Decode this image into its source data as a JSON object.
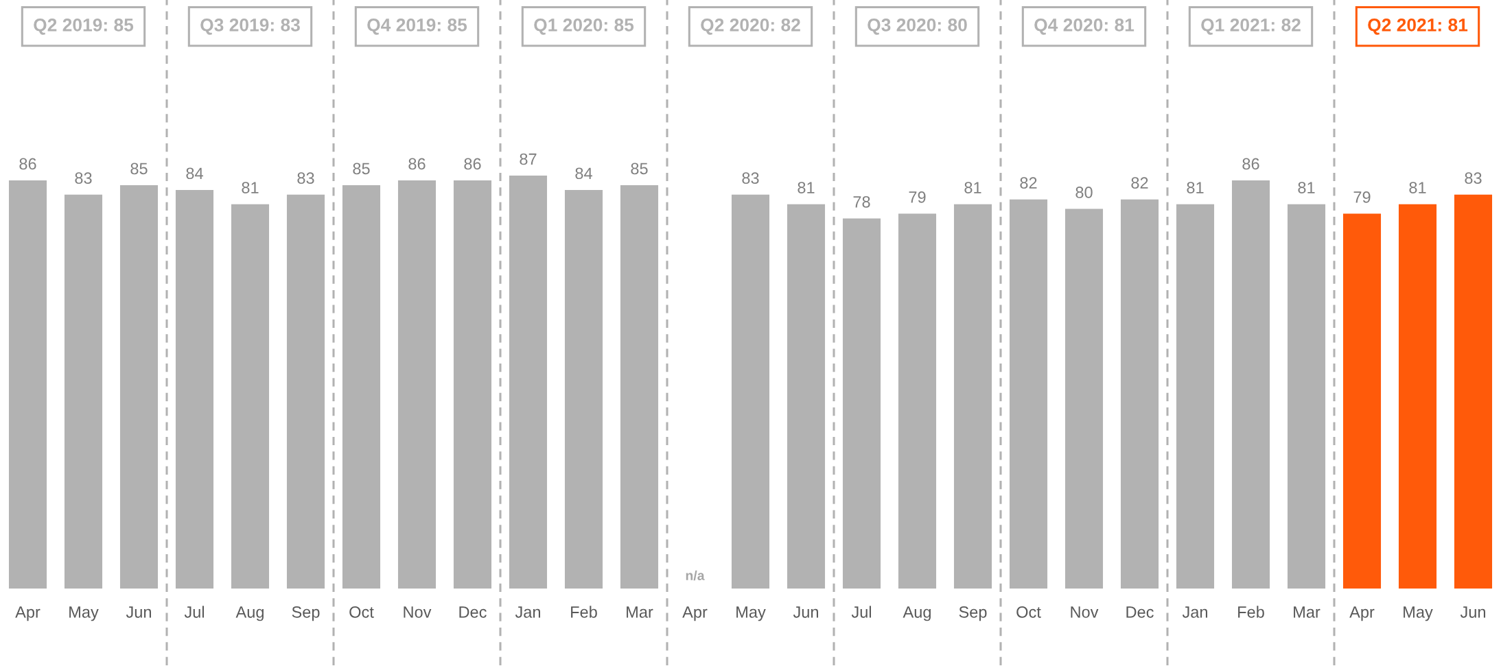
{
  "chart_data": {
    "type": "bar",
    "categories": [
      "Apr",
      "May",
      "Jun",
      "Jul",
      "Aug",
      "Sep",
      "Oct",
      "Nov",
      "Dec",
      "Jan",
      "Feb",
      "Mar",
      "Apr",
      "May",
      "Jun",
      "Jul",
      "Aug",
      "Sep",
      "Oct",
      "Nov",
      "Dec",
      "Jan",
      "Feb",
      "Mar",
      "Apr",
      "May",
      "Jun"
    ],
    "values": [
      86,
      83,
      85,
      84,
      81,
      83,
      85,
      86,
      86,
      87,
      84,
      85,
      null,
      83,
      81,
      78,
      79,
      81,
      82,
      80,
      82,
      81,
      86,
      81,
      79,
      81,
      83
    ],
    "colors": [
      "#b2b2b2",
      "#b2b2b2",
      "#b2b2b2",
      "#b2b2b2",
      "#b2b2b2",
      "#b2b2b2",
      "#b2b2b2",
      "#b2b2b2",
      "#b2b2b2",
      "#b2b2b2",
      "#b2b2b2",
      "#b2b2b2",
      "#b2b2b2",
      "#b2b2b2",
      "#b2b2b2",
      "#b2b2b2",
      "#b2b2b2",
      "#b2b2b2",
      "#b2b2b2",
      "#b2b2b2",
      "#b2b2b2",
      "#b2b2b2",
      "#b2b2b2",
      "#b2b2b2",
      "#ff5a0a",
      "#ff5a0a",
      "#ff5a0a"
    ],
    "ylim": [
      0,
      124
    ],
    "tick_labels": "x",
    "data_labels": true,
    "grid": false,
    "legend": false,
    "annotations": [
      "Q2 2019: 85",
      "Q3 2019: 83",
      "Q4 2019: 85",
      "Q1 2020: 85",
      "Q2 2020: 82",
      "Q3 2020: 80",
      "Q4 2020: 81",
      "Q1 2021: 82",
      "Q2 2021: 81",
      "n/a"
    ]
  }
}
